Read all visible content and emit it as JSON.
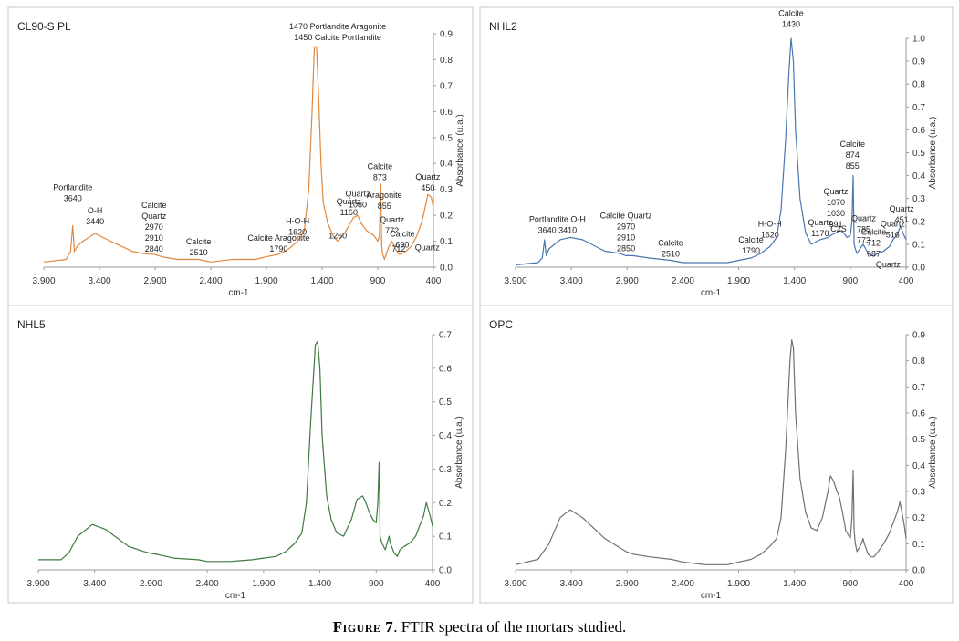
{
  "caption": {
    "prefix": "Figure 7",
    "text": ". FTIR spectra of the mortars studied."
  },
  "chart_data": [
    {
      "type": "line",
      "title": "CL90-S PL",
      "xlabel": "cm-1",
      "ylabel": "Absorbance (u.a.)",
      "color": "#e0873d",
      "xlim": [
        3900,
        400
      ],
      "ylim": [
        0,
        0.9
      ],
      "xticks": [
        "3.900",
        "3.400",
        "2.900",
        "2.400",
        "1.900",
        "1.400",
        "900",
        "400"
      ],
      "yticks": [
        "0.0",
        "0.1",
        "0.2",
        "0.3",
        "0.4",
        "0.5",
        "0.6",
        "0.7",
        "0.8",
        "0.9"
      ],
      "x": [
        3900,
        3700,
        3660,
        3640,
        3625,
        3600,
        3550,
        3440,
        3300,
        3100,
        2970,
        2910,
        2840,
        2700,
        2510,
        2400,
        2200,
        2000,
        1900,
        1790,
        1700,
        1620,
        1560,
        1520,
        1490,
        1470,
        1450,
        1430,
        1410,
        1390,
        1350,
        1300,
        1260,
        1200,
        1160,
        1120,
        1080,
        1050,
        1000,
        960,
        930,
        900,
        885,
        873,
        865,
        855,
        840,
        800,
        772,
        740,
        712,
        690,
        650,
        600,
        550,
        500,
        470,
        450,
        420,
        400
      ],
      "y": [
        0.02,
        0.03,
        0.06,
        0.16,
        0.06,
        0.08,
        0.1,
        0.13,
        0.1,
        0.06,
        0.05,
        0.05,
        0.04,
        0.03,
        0.03,
        0.02,
        0.03,
        0.03,
        0.04,
        0.05,
        0.07,
        0.1,
        0.14,
        0.3,
        0.6,
        0.85,
        0.85,
        0.65,
        0.4,
        0.25,
        0.17,
        0.12,
        0.1,
        0.13,
        0.16,
        0.19,
        0.2,
        0.17,
        0.14,
        0.13,
        0.12,
        0.1,
        0.12,
        0.32,
        0.08,
        0.05,
        0.03,
        0.08,
        0.1,
        0.07,
        0.05,
        0.05,
        0.06,
        0.08,
        0.12,
        0.18,
        0.24,
        0.28,
        0.27,
        0.23
      ],
      "annotations": [
        {
          "text": [
            "Portlandite",
            "3640"
          ],
          "x": 3640,
          "y": 0.255
        },
        {
          "text": [
            "O-H",
            "3440"
          ],
          "x": 3440,
          "y": 0.165
        },
        {
          "text": [
            "Calcite",
            "Quartz",
            "2970",
            "2910",
            "2840"
          ],
          "x": 2910,
          "y": 0.06
        },
        {
          "text": [
            "Calcite",
            "2510"
          ],
          "x": 2510,
          "y": 0.045
        },
        {
          "text": [
            "Calcite Aragonite",
            "1790"
          ],
          "x": 1790,
          "y": 0.06
        },
        {
          "text": [
            "H-O-H",
            "1620"
          ],
          "x": 1620,
          "y": 0.125
        },
        {
          "text": [
            "1470  Portlandite  Aragonite",
            "1450  Calcite  Portlandite"
          ],
          "x": 1260,
          "y": 0.875
        },
        {
          "text": [
            "Quartz",
            "1160"
          ],
          "x": 1160,
          "y": 0.2
        },
        {
          "text": [
            "1260"
          ],
          "x": 1260,
          "y": 0.11
        },
        {
          "text": [
            "Quartz",
            "1080"
          ],
          "x": 1080,
          "y": 0.23
        },
        {
          "text": [
            "Calcite",
            "873"
          ],
          "x": 880,
          "y": 0.335
        },
        {
          "text": [
            "Aragonite",
            "855"
          ],
          "x": 840,
          "y": 0.225
        },
        {
          "text": [
            "Quartz",
            "772"
          ],
          "x": 772,
          "y": 0.13
        },
        {
          "text": [
            "712"
          ],
          "x": 712,
          "y": 0.06
        },
        {
          "text": [
            "Calcite",
            "690"
          ],
          "x": 680,
          "y": 0.075
        },
        {
          "text": [
            "Quartz",
            "450"
          ],
          "x": 450,
          "y": 0.295
        },
        {
          "text": [
            "Quartz"
          ],
          "x": 455,
          "y": 0.065
        }
      ]
    },
    {
      "type": "line",
      "title": "NHL2",
      "xlabel": "cm-1",
      "ylabel": "Absorbance (u.a.)",
      "color": "#4a76b0",
      "xlim": [
        3900,
        400
      ],
      "ylim": [
        0,
        1.0
      ],
      "xticks": [
        "3.900",
        "3.400",
        "2.900",
        "2.400",
        "1.900",
        "1.400",
        "900",
        "400"
      ],
      "yticks": [
        "0.0",
        "0.1",
        "0.2",
        "0.3",
        "0.4",
        "0.5",
        "0.6",
        "0.7",
        "0.8",
        "0.9",
        "1.0"
      ],
      "x": [
        3900,
        3700,
        3660,
        3640,
        3625,
        3600,
        3500,
        3410,
        3300,
        3100,
        2970,
        2910,
        2850,
        2700,
        2510,
        2400,
        2200,
        2000,
        1900,
        1790,
        1700,
        1620,
        1560,
        1520,
        1480,
        1450,
        1430,
        1410,
        1390,
        1350,
        1300,
        1250,
        1170,
        1100,
        1070,
        1030,
        991,
        960,
        930,
        900,
        885,
        874,
        865,
        855,
        840,
        800,
        785,
        773,
        740,
        712,
        687,
        650,
        600,
        550,
        516,
        480,
        451,
        420,
        400
      ],
      "y": [
        0.01,
        0.02,
        0.04,
        0.12,
        0.05,
        0.08,
        0.12,
        0.13,
        0.12,
        0.07,
        0.06,
        0.05,
        0.05,
        0.04,
        0.03,
        0.02,
        0.02,
        0.02,
        0.03,
        0.04,
        0.06,
        0.09,
        0.13,
        0.25,
        0.55,
        0.85,
        1.0,
        0.9,
        0.6,
        0.3,
        0.15,
        0.1,
        0.12,
        0.13,
        0.14,
        0.15,
        0.16,
        0.15,
        0.13,
        0.14,
        0.2,
        0.4,
        0.1,
        0.08,
        0.06,
        0.09,
        0.1,
        0.09,
        0.06,
        0.05,
        0.05,
        0.06,
        0.07,
        0.09,
        0.12,
        0.14,
        0.18,
        0.14,
        0.12
      ],
      "annotations": [
        {
          "text": [
            "Calcite",
            "1430"
          ],
          "x": 1430,
          "y": 1.05
        },
        {
          "text": [
            "Portlandite O-H",
            "3640     3410"
          ],
          "x": 3525,
          "y": 0.15
        },
        {
          "text": [
            "Calcite Quartz",
            "2970",
            "2910",
            "2850"
          ],
          "x": 2910,
          "y": 0.07
        },
        {
          "text": [
            "Calcite",
            "2510"
          ],
          "x": 2510,
          "y": 0.045
        },
        {
          "text": [
            "H-O-H",
            "1620"
          ],
          "x": 1620,
          "y": 0.13
        },
        {
          "text": [
            "Calcite",
            "1790"
          ],
          "x": 1790,
          "y": 0.06
        },
        {
          "text": [
            "Quartz",
            "1170"
          ],
          "x": 1170,
          "y": 0.135
        },
        {
          "text": [
            "Calcite",
            "874",
            "855"
          ],
          "x": 880,
          "y": 0.43
        },
        {
          "text": [
            "Quartz",
            "1070",
            "1030",
            "991"
          ],
          "x": 1030,
          "y": 0.175
        },
        {
          "text": [
            "C2S"
          ],
          "x": 1005,
          "y": 0.155
        },
        {
          "text": [
            "Quartz",
            "785",
            "773"
          ],
          "x": 780,
          "y": 0.105
        },
        {
          "text": [
            "Calcite",
            "712",
            "687"
          ],
          "x": 690,
          "y": 0.045
        },
        {
          "text": [
            "Quartz",
            "516"
          ],
          "x": 520,
          "y": 0.13
        },
        {
          "text": [
            "Quartz",
            "451"
          ],
          "x": 440,
          "y": 0.195
        },
        {
          "text": [
            "Quartz"
          ],
          "x": 560,
          "y": 0.0
        }
      ]
    },
    {
      "type": "line",
      "title": "NHL5",
      "xlabel": "cm-1",
      "ylabel": "Absorbance (u.a.)",
      "color": "#3f7a3f",
      "xlim": [
        3900,
        400
      ],
      "ylim": [
        0,
        0.7
      ],
      "xticks": [
        "3.900",
        "3.400",
        "2.900",
        "2.400",
        "1.900",
        "1.400",
        "900",
        "400"
      ],
      "yticks": [
        "0.0",
        "0.1",
        "0.2",
        "0.3",
        "0.4",
        "0.5",
        "0.6",
        "0.7"
      ],
      "x": [
        3900,
        3700,
        3630,
        3550,
        3420,
        3300,
        3100,
        2970,
        2910,
        2830,
        2700,
        2480,
        2400,
        2200,
        2000,
        1900,
        1790,
        1700,
        1620,
        1560,
        1520,
        1480,
        1440,
        1420,
        1400,
        1380,
        1340,
        1300,
        1250,
        1190,
        1120,
        1070,
        1020,
        992,
        960,
        930,
        900,
        885,
        874,
        865,
        850,
        820,
        786,
        775,
        740,
        712,
        689,
        650,
        600,
        550,
        516,
        480,
        455,
        420,
        400
      ],
      "y": [
        0.03,
        0.03,
        0.05,
        0.1,
        0.135,
        0.12,
        0.07,
        0.055,
        0.05,
        0.045,
        0.035,
        0.03,
        0.025,
        0.025,
        0.03,
        0.035,
        0.04,
        0.055,
        0.08,
        0.11,
        0.2,
        0.45,
        0.67,
        0.68,
        0.6,
        0.4,
        0.22,
        0.15,
        0.11,
        0.1,
        0.15,
        0.21,
        0.22,
        0.2,
        0.17,
        0.15,
        0.14,
        0.2,
        0.32,
        0.1,
        0.08,
        0.06,
        0.1,
        0.08,
        0.05,
        0.04,
        0.06,
        0.07,
        0.08,
        0.1,
        0.13,
        0.16,
        0.2,
        0.16,
        0.13
      ]
    },
    {
      "type": "line",
      "title": "OPC",
      "xlabel": "cm-1",
      "ylabel": "Absorbance (u.a.)",
      "color": "#707070",
      "xlim": [
        3900,
        400
      ],
      "ylim": [
        0,
        0.9
      ],
      "xticks": [
        "3.900",
        "3.400",
        "2.900",
        "2.400",
        "1.900",
        "1.400",
        "900",
        "400"
      ],
      "yticks": [
        "0.0",
        "0.1",
        "0.2",
        "0.3",
        "0.4",
        "0.5",
        "0.6",
        "0.7",
        "0.8",
        "0.9"
      ],
      "x": [
        3900,
        3700,
        3600,
        3500,
        3412,
        3300,
        3100,
        2910,
        2844,
        2700,
        2501,
        2400,
        2200,
        2000,
        1900,
        1791,
        1700,
        1620,
        1560,
        1520,
        1480,
        1440,
        1425,
        1410,
        1390,
        1350,
        1300,
        1250,
        1200,
        1150,
        1100,
        1078,
        1050,
        1019,
        999,
        970,
        940,
        900,
        885,
        874,
        865,
        855,
        840,
        800,
        785,
        774,
        740,
        714,
        689,
        650,
        600,
        550,
        515,
        480,
        455,
        420,
        400
      ],
      "y": [
        0.02,
        0.04,
        0.1,
        0.2,
        0.23,
        0.2,
        0.12,
        0.07,
        0.06,
        0.05,
        0.04,
        0.03,
        0.02,
        0.02,
        0.03,
        0.04,
        0.06,
        0.09,
        0.12,
        0.2,
        0.45,
        0.8,
        0.88,
        0.85,
        0.6,
        0.35,
        0.22,
        0.16,
        0.15,
        0.2,
        0.3,
        0.36,
        0.34,
        0.3,
        0.28,
        0.22,
        0.15,
        0.12,
        0.2,
        0.38,
        0.15,
        0.1,
        0.07,
        0.1,
        0.12,
        0.1,
        0.06,
        0.05,
        0.05,
        0.07,
        0.1,
        0.14,
        0.18,
        0.22,
        0.26,
        0.18,
        0.12
      ]
    }
  ]
}
